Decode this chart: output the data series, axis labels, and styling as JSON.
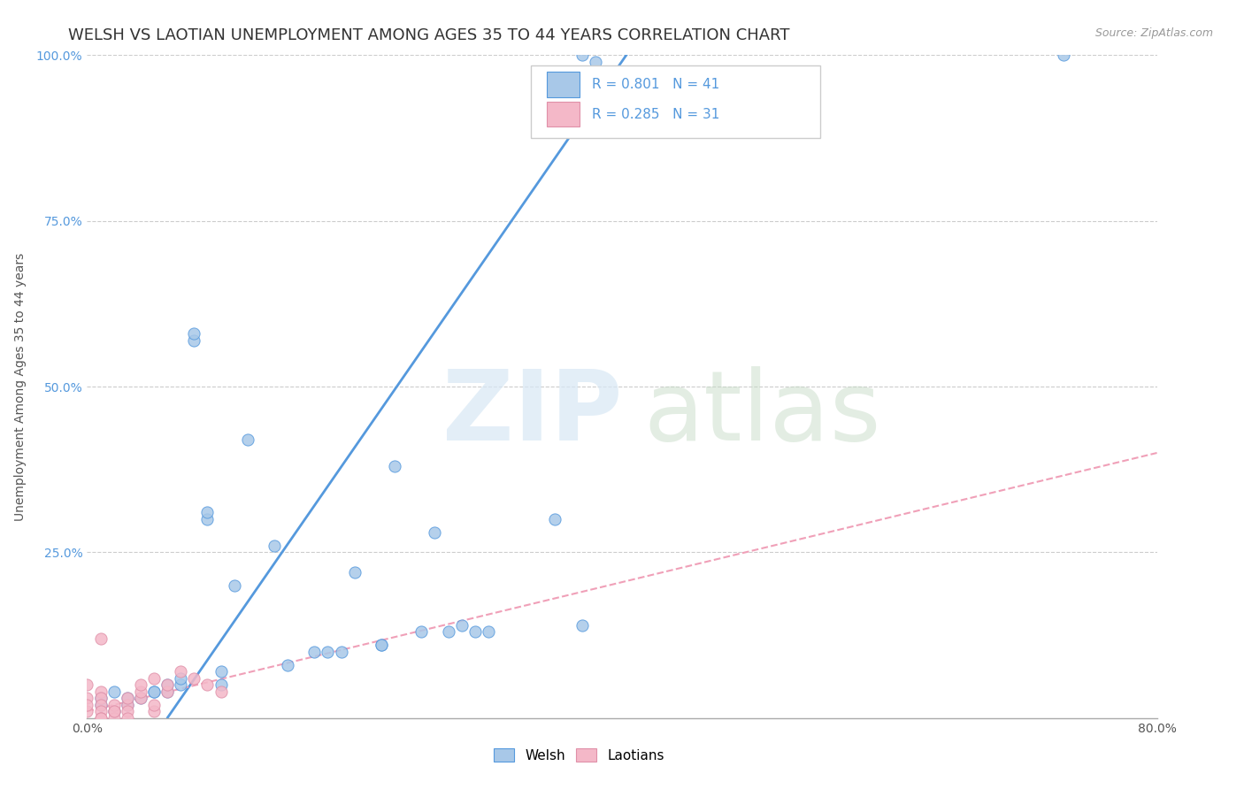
{
  "title": "WELSH VS LAOTIAN UNEMPLOYMENT AMONG AGES 35 TO 44 YEARS CORRELATION CHART",
  "source": "Source: ZipAtlas.com",
  "ylabel": "Unemployment Among Ages 35 to 44 years",
  "xlim": [
    0.0,
    0.8
  ],
  "ylim": [
    0.0,
    1.0
  ],
  "xticks": [
    0.0,
    0.1,
    0.2,
    0.3,
    0.4,
    0.5,
    0.6,
    0.7,
    0.8
  ],
  "xticklabels": [
    "0.0%",
    "",
    "",
    "",
    "",
    "",
    "",
    "",
    "80.0%"
  ],
  "yticks": [
    0.0,
    0.25,
    0.5,
    0.75,
    1.0
  ],
  "yticklabels": [
    "",
    "25.0%",
    "50.0%",
    "75.0%",
    "100.0%"
  ],
  "welsh_R": 0.801,
  "welsh_N": 41,
  "laotian_R": 0.285,
  "laotian_N": 31,
  "welsh_color": "#a8c8e8",
  "laotian_color": "#f4b8c8",
  "welsh_line_color": "#5599dd",
  "laotian_line_color": "#f0a0b8",
  "tick_color_right": "#5599dd",
  "background_color": "#ffffff",
  "grid_color": "#cccccc",
  "title_fontsize": 13,
  "axis_label_fontsize": 10,
  "tick_fontsize": 10,
  "welsh_scatter_x": [
    0.37,
    0.38,
    0.73,
    0.01,
    0.01,
    0.02,
    0.02,
    0.03,
    0.03,
    0.04,
    0.05,
    0.05,
    0.06,
    0.06,
    0.07,
    0.07,
    0.08,
    0.08,
    0.1,
    0.1,
    0.11,
    0.12,
    0.14,
    0.15,
    0.17,
    0.18,
    0.19,
    0.2,
    0.22,
    0.22,
    0.23,
    0.25,
    0.26,
    0.27,
    0.28,
    0.29,
    0.3,
    0.35,
    0.37,
    0.09,
    0.09
  ],
  "welsh_scatter_y": [
    1.0,
    0.99,
    1.0,
    0.02,
    0.03,
    0.01,
    0.04,
    0.02,
    0.03,
    0.03,
    0.04,
    0.04,
    0.04,
    0.05,
    0.05,
    0.06,
    0.57,
    0.58,
    0.05,
    0.07,
    0.2,
    0.42,
    0.26,
    0.08,
    0.1,
    0.1,
    0.1,
    0.22,
    0.11,
    0.11,
    0.38,
    0.13,
    0.28,
    0.13,
    0.14,
    0.13,
    0.13,
    0.3,
    0.14,
    0.3,
    0.31
  ],
  "laotian_scatter_x": [
    0.0,
    0.0,
    0.0,
    0.0,
    0.01,
    0.01,
    0.01,
    0.01,
    0.01,
    0.01,
    0.01,
    0.02,
    0.02,
    0.02,
    0.02,
    0.03,
    0.03,
    0.03,
    0.03,
    0.04,
    0.04,
    0.04,
    0.05,
    0.05,
    0.05,
    0.06,
    0.06,
    0.07,
    0.08,
    0.09,
    0.1
  ],
  "laotian_scatter_y": [
    0.05,
    0.03,
    0.01,
    0.02,
    0.04,
    0.03,
    0.02,
    0.01,
    0.0,
    0.0,
    0.12,
    0.01,
    0.02,
    0.0,
    0.01,
    0.02,
    0.03,
    0.01,
    0.0,
    0.03,
    0.04,
    0.05,
    0.06,
    0.01,
    0.02,
    0.04,
    0.05,
    0.07,
    0.06,
    0.05,
    0.04
  ],
  "welsh_line_x0": 0.06,
  "welsh_line_y0": 0.0,
  "welsh_line_x1": 0.41,
  "welsh_line_y1": 1.02,
  "laotian_line_x0": 0.0,
  "laotian_line_y0": 0.01,
  "laotian_line_x1": 0.8,
  "laotian_line_y1": 0.4
}
